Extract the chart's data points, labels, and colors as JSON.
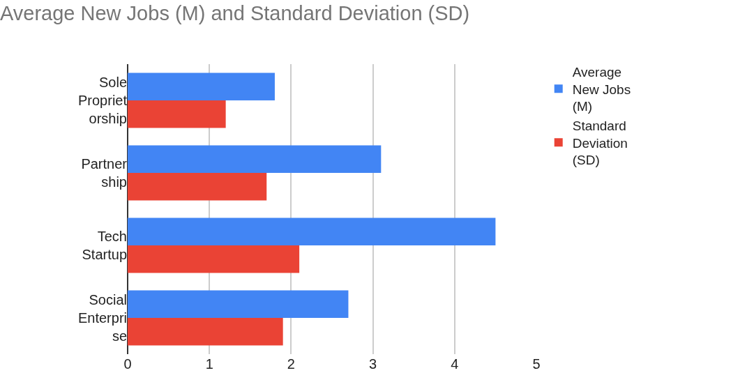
{
  "chart_data": {
    "type": "bar",
    "orientation": "horizontal",
    "title": "Average New Jobs (M) and Standard Deviation (SD)",
    "categories": [
      "Sole Proprietorship",
      "Partnership",
      "Tech Startup",
      "Social Enterprise"
    ],
    "series": [
      {
        "name": "Average New Jobs (M)",
        "color": "#4285f4",
        "values": [
          1.8,
          3.1,
          4.5,
          2.7
        ]
      },
      {
        "name": "Standard Deviation (SD)",
        "color": "#ea4335",
        "values": [
          1.2,
          1.7,
          2.1,
          1.9
        ]
      }
    ],
    "xlim": [
      0,
      5
    ],
    "xticks": [
      0,
      1,
      2,
      3,
      4,
      5
    ],
    "grid": "x",
    "legend": "top right"
  }
}
